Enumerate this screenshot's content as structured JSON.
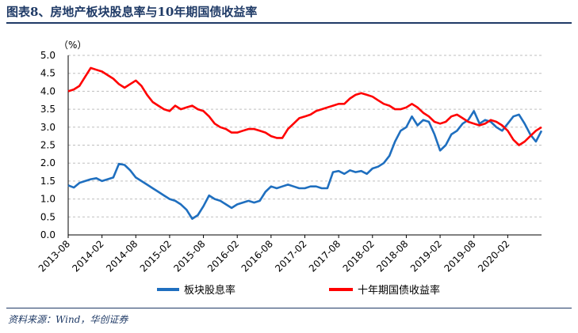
{
  "figure": {
    "title": "图表8、房地产板块股息率与10年期国债收益率",
    "source": "资料来源：Wind，华创证券"
  },
  "colors": {
    "series1": "#1f6fbf",
    "series2": "#ff0000",
    "grid": "#bfbfbf",
    "rule": "#1f3a66"
  },
  "chart_data": {
    "type": "line",
    "title": "",
    "xlabel": "",
    "ylabel": "（%）",
    "ylim": [
      0,
      5
    ],
    "yticks": [
      "0.0",
      "0.5",
      "1.0",
      "1.5",
      "2.0",
      "2.5",
      "3.0",
      "3.5",
      "4.0",
      "4.5",
      "5.0"
    ],
    "xticks": [
      "2013-08",
      "2014-02",
      "2014-08",
      "2015-02",
      "2015-08",
      "2016-02",
      "2016-08",
      "2017-02",
      "2017-08",
      "2018-02",
      "2018-08",
      "2019-02",
      "2019-08",
      "2020-02"
    ],
    "grid": "horizontal",
    "legend": "bottom",
    "series": [
      {
        "name": "板块股息率",
        "x": [
          "2013-08",
          "2013-09",
          "2013-10",
          "2013-11",
          "2013-12",
          "2014-01",
          "2014-02",
          "2014-03",
          "2014-04",
          "2014-05",
          "2014-06",
          "2014-07",
          "2014-08",
          "2014-09",
          "2014-10",
          "2014-11",
          "2014-12",
          "2015-01",
          "2015-02",
          "2015-03",
          "2015-04",
          "2015-05",
          "2015-06",
          "2015-07",
          "2015-08",
          "2015-09",
          "2015-10",
          "2015-11",
          "2015-12",
          "2016-01",
          "2016-02",
          "2016-03",
          "2016-04",
          "2016-05",
          "2016-06",
          "2016-07",
          "2016-08",
          "2016-09",
          "2016-10",
          "2016-11",
          "2016-12",
          "2017-01",
          "2017-02",
          "2017-03",
          "2017-04",
          "2017-05",
          "2017-06",
          "2017-07",
          "2017-08",
          "2017-09",
          "2017-10",
          "2017-11",
          "2017-12",
          "2018-01",
          "2018-02",
          "2018-03",
          "2018-04",
          "2018-05",
          "2018-06",
          "2018-07",
          "2018-08",
          "2018-09",
          "2018-10",
          "2018-11",
          "2018-12",
          "2019-01",
          "2019-02",
          "2019-03",
          "2019-04",
          "2019-05",
          "2019-06",
          "2019-07",
          "2019-08",
          "2019-09",
          "2019-10",
          "2019-11",
          "2019-12",
          "2020-01",
          "2020-02",
          "2020-03",
          "2020-04",
          "2020-05",
          "2020-06",
          "2020-07",
          "2020-08"
        ],
        "values": [
          1.38,
          1.32,
          1.45,
          1.5,
          1.55,
          1.58,
          1.5,
          1.55,
          1.6,
          1.98,
          1.95,
          1.8,
          1.6,
          1.5,
          1.4,
          1.3,
          1.2,
          1.1,
          1.0,
          0.95,
          0.85,
          0.7,
          0.45,
          0.55,
          0.8,
          1.1,
          1.0,
          0.95,
          0.85,
          0.75,
          0.85,
          0.9,
          0.95,
          0.9,
          0.95,
          1.2,
          1.35,
          1.3,
          1.35,
          1.4,
          1.35,
          1.3,
          1.3,
          1.35,
          1.35,
          1.3,
          1.3,
          1.75,
          1.78,
          1.7,
          1.8,
          1.75,
          1.78,
          1.7,
          1.85,
          1.9,
          2.0,
          2.2,
          2.6,
          2.9,
          3.0,
          3.3,
          3.05,
          3.2,
          3.15,
          2.8,
          2.35,
          2.5,
          2.8,
          2.9,
          3.1,
          3.2,
          3.45,
          3.1,
          3.2,
          3.15,
          3.0,
          2.9,
          3.1,
          3.3,
          3.35,
          3.1,
          2.8,
          2.6,
          2.9
        ]
      },
      {
        "name": "十年期国债收益率",
        "x": [
          "2013-08",
          "2013-09",
          "2013-10",
          "2013-11",
          "2013-12",
          "2014-01",
          "2014-02",
          "2014-03",
          "2014-04",
          "2014-05",
          "2014-06",
          "2014-07",
          "2014-08",
          "2014-09",
          "2014-10",
          "2014-11",
          "2014-12",
          "2015-01",
          "2015-02",
          "2015-03",
          "2015-04",
          "2015-05",
          "2015-06",
          "2015-07",
          "2015-08",
          "2015-09",
          "2015-10",
          "2015-11",
          "2015-12",
          "2016-01",
          "2016-02",
          "2016-03",
          "2016-04",
          "2016-05",
          "2016-06",
          "2016-07",
          "2016-08",
          "2016-09",
          "2016-10",
          "2016-11",
          "2016-12",
          "2017-01",
          "2017-02",
          "2017-03",
          "2017-04",
          "2017-05",
          "2017-06",
          "2017-07",
          "2017-08",
          "2017-09",
          "2017-10",
          "2017-11",
          "2017-12",
          "2018-01",
          "2018-02",
          "2018-03",
          "2018-04",
          "2018-05",
          "2018-06",
          "2018-07",
          "2018-08",
          "2018-09",
          "2018-10",
          "2018-11",
          "2018-12",
          "2019-01",
          "2019-02",
          "2019-03",
          "2019-04",
          "2019-05",
          "2019-06",
          "2019-07",
          "2019-08",
          "2019-09",
          "2019-10",
          "2019-11",
          "2019-12",
          "2020-01",
          "2020-02",
          "2020-03",
          "2020-04",
          "2020-05",
          "2020-06",
          "2020-07",
          "2020-08"
        ],
        "values": [
          4.0,
          4.05,
          4.15,
          4.4,
          4.65,
          4.6,
          4.55,
          4.45,
          4.35,
          4.2,
          4.1,
          4.2,
          4.3,
          4.15,
          3.9,
          3.7,
          3.6,
          3.5,
          3.45,
          3.6,
          3.5,
          3.55,
          3.6,
          3.5,
          3.45,
          3.3,
          3.1,
          3.0,
          2.95,
          2.85,
          2.85,
          2.9,
          2.95,
          2.95,
          2.9,
          2.85,
          2.75,
          2.7,
          2.7,
          2.95,
          3.1,
          3.25,
          3.3,
          3.35,
          3.45,
          3.5,
          3.55,
          3.6,
          3.65,
          3.65,
          3.8,
          3.9,
          3.95,
          3.9,
          3.85,
          3.75,
          3.65,
          3.6,
          3.5,
          3.5,
          3.55,
          3.65,
          3.55,
          3.4,
          3.3,
          3.15,
          3.1,
          3.15,
          3.3,
          3.35,
          3.25,
          3.15,
          3.1,
          3.05,
          3.1,
          3.2,
          3.15,
          3.05,
          2.9,
          2.65,
          2.5,
          2.6,
          2.75,
          2.9,
          3.0
        ]
      }
    ]
  }
}
